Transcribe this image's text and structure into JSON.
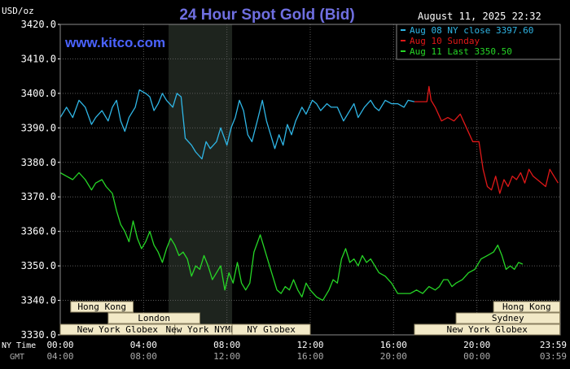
{
  "header": {
    "title": "24 Hour Spot Gold (Bid)",
    "units": "USD/oz",
    "timestamp": "August 11, 2025 22:32",
    "watermark": "www.kitco.com"
  },
  "colors": {
    "background": "#000000",
    "plot_bg": "#000000",
    "grid": "#5a5a5a",
    "title": "#6f6fe0",
    "watermark": "#4b63ff",
    "series_close": "#2fb6e6",
    "series_sunday": "#e01818",
    "series_last": "#26d626",
    "session_fill": "#f2e9c7",
    "session_text": "#000000",
    "session_border": "#8a8060",
    "highlight_band": "#1e241e"
  },
  "legend": [
    {
      "label": "Aug 08 NY close 3397.60",
      "color": "#2fb6e6"
    },
    {
      "label": "Aug 10 Sunday",
      "color": "#e01818"
    },
    {
      "label": "Aug 11 Last 3350.50",
      "color": "#26d626"
    }
  ],
  "axis": {
    "x_row1_label": "NY Time",
    "x_row2_label": "GMT",
    "x_ticks_ny": [
      "00:00",
      "04:00",
      "08:00",
      "12:00",
      "16:00",
      "20:00",
      "23:59"
    ],
    "x_ticks_gmt": [
      "04:00",
      "08:00",
      "12:00",
      "16:00",
      "20:00",
      "00:00",
      "03:59"
    ]
  },
  "sessions": [
    {
      "name": "Hong Kong",
      "row": 0,
      "start": 0.5,
      "end": 3.5
    },
    {
      "name": "Hong Kong",
      "row": 0,
      "start": 20.8,
      "end": 23.98
    },
    {
      "name": "London",
      "row": 1,
      "start": 2.3,
      "end": 6.7
    },
    {
      "name": "Sydney",
      "row": 1,
      "start": 19.0,
      "end": 23.98
    },
    {
      "name": "New York Globex",
      "row": 2,
      "start": 0,
      "end": 5.5
    },
    {
      "name": "New York NYMEX",
      "row": 2,
      "start": 5.5,
      "end": 8.25
    },
    {
      "name": "NY Globex",
      "row": 2,
      "start": 8.25,
      "end": 12.0
    },
    {
      "name": "New York Globex",
      "row": 2,
      "start": 17.0,
      "end": 23.98
    }
  ],
  "chart_data": {
    "type": "line",
    "title": "24 Hour Spot Gold (Bid)",
    "ylabel": "USD/oz",
    "xlabel": "NY Time",
    "xlim": [
      0,
      24
    ],
    "ylim": [
      3330,
      3420
    ],
    "yticks": [
      "3330.0",
      "3340.0",
      "3350.0",
      "3360.0",
      "3370.0",
      "3380.0",
      "3390.0",
      "3400.0",
      "3410.0",
      "3420.0"
    ],
    "grid": true,
    "legend_position": "top-right",
    "highlight_band_hours": [
      5.2,
      8.25
    ],
    "series": [
      {
        "name": "Aug 08 NY close 3397.60",
        "color": "#2fb6e6",
        "points": [
          [
            0.0,
            3393
          ],
          [
            0.3,
            3396
          ],
          [
            0.6,
            3393
          ],
          [
            0.9,
            3398
          ],
          [
            1.2,
            3396
          ],
          [
            1.5,
            3391
          ],
          [
            1.7,
            3393
          ],
          [
            2.0,
            3395
          ],
          [
            2.3,
            3392
          ],
          [
            2.5,
            3396
          ],
          [
            2.7,
            3398
          ],
          [
            2.9,
            3392
          ],
          [
            3.1,
            3389
          ],
          [
            3.3,
            3393
          ],
          [
            3.6,
            3396
          ],
          [
            3.8,
            3401
          ],
          [
            4.1,
            3400
          ],
          [
            4.3,
            3399
          ],
          [
            4.5,
            3395
          ],
          [
            4.7,
            3397
          ],
          [
            4.9,
            3400
          ],
          [
            5.1,
            3398
          ],
          [
            5.4,
            3396
          ],
          [
            5.6,
            3400
          ],
          [
            5.8,
            3399
          ],
          [
            6.0,
            3387
          ],
          [
            6.3,
            3385
          ],
          [
            6.5,
            3383
          ],
          [
            6.8,
            3381
          ],
          [
            7.0,
            3386
          ],
          [
            7.2,
            3384
          ],
          [
            7.5,
            3386
          ],
          [
            7.7,
            3390
          ],
          [
            8.0,
            3385
          ],
          [
            8.2,
            3390
          ],
          [
            8.4,
            3393
          ],
          [
            8.6,
            3398
          ],
          [
            8.8,
            3395
          ],
          [
            9.0,
            3388
          ],
          [
            9.2,
            3386
          ],
          [
            9.5,
            3393
          ],
          [
            9.7,
            3398
          ],
          [
            9.9,
            3392
          ],
          [
            10.1,
            3388
          ],
          [
            10.3,
            3384
          ],
          [
            10.5,
            3388
          ],
          [
            10.7,
            3385
          ],
          [
            10.9,
            3391
          ],
          [
            11.1,
            3388
          ],
          [
            11.3,
            3392
          ],
          [
            11.6,
            3396
          ],
          [
            11.8,
            3394
          ],
          [
            12.1,
            3398
          ],
          [
            12.3,
            3397
          ],
          [
            12.5,
            3395
          ],
          [
            12.8,
            3397
          ],
          [
            13.0,
            3396
          ],
          [
            13.3,
            3396
          ],
          [
            13.6,
            3392
          ],
          [
            13.9,
            3395
          ],
          [
            14.1,
            3397
          ],
          [
            14.3,
            3393
          ],
          [
            14.6,
            3396
          ],
          [
            14.9,
            3398
          ],
          [
            15.1,
            3396
          ],
          [
            15.3,
            3395
          ],
          [
            15.6,
            3398
          ],
          [
            15.9,
            3397
          ],
          [
            16.2,
            3397
          ],
          [
            16.5,
            3396
          ],
          [
            16.7,
            3398
          ],
          [
            17.0,
            3397.6
          ]
        ]
      },
      {
        "name": "Aug 10 Sunday",
        "color": "#e01818",
        "points": [
          [
            17.0,
            3397.6
          ],
          [
            17.6,
            3397.6
          ],
          [
            17.7,
            3402
          ],
          [
            17.8,
            3398
          ],
          [
            18.0,
            3396
          ],
          [
            18.3,
            3392
          ],
          [
            18.6,
            3393
          ],
          [
            18.9,
            3392
          ],
          [
            19.2,
            3394
          ],
          [
            19.5,
            3390
          ],
          [
            19.8,
            3386
          ],
          [
            20.1,
            3386
          ],
          [
            20.3,
            3378
          ],
          [
            20.5,
            3373
          ],
          [
            20.7,
            3372
          ],
          [
            20.9,
            3376
          ],
          [
            21.1,
            3371
          ],
          [
            21.3,
            3375
          ],
          [
            21.5,
            3373
          ],
          [
            21.7,
            3376
          ],
          [
            21.9,
            3375
          ],
          [
            22.1,
            3377
          ],
          [
            22.3,
            3374
          ],
          [
            22.5,
            3378
          ],
          [
            22.7,
            3376
          ],
          [
            22.9,
            3375
          ],
          [
            23.1,
            3374
          ],
          [
            23.3,
            3373
          ],
          [
            23.5,
            3378
          ],
          [
            23.7,
            3376
          ],
          [
            23.9,
            3374
          ]
        ]
      },
      {
        "name": "Aug 11 Last 3350.50",
        "color": "#26d626",
        "points": [
          [
            0.0,
            3377
          ],
          [
            0.3,
            3376
          ],
          [
            0.6,
            3375
          ],
          [
            0.9,
            3377
          ],
          [
            1.2,
            3375
          ],
          [
            1.5,
            3372
          ],
          [
            1.7,
            3374
          ],
          [
            2.0,
            3375
          ],
          [
            2.2,
            3373
          ],
          [
            2.5,
            3371
          ],
          [
            2.7,
            3366
          ],
          [
            2.9,
            3362
          ],
          [
            3.1,
            3360
          ],
          [
            3.3,
            3357
          ],
          [
            3.5,
            3363
          ],
          [
            3.7,
            3358
          ],
          [
            3.9,
            3355
          ],
          [
            4.1,
            3357
          ],
          [
            4.3,
            3360
          ],
          [
            4.5,
            3356
          ],
          [
            4.7,
            3354
          ],
          [
            4.9,
            3351
          ],
          [
            5.1,
            3355
          ],
          [
            5.3,
            3358
          ],
          [
            5.5,
            3356
          ],
          [
            5.7,
            3353
          ],
          [
            5.9,
            3354
          ],
          [
            6.1,
            3352
          ],
          [
            6.3,
            3347
          ],
          [
            6.5,
            3350
          ],
          [
            6.7,
            3349
          ],
          [
            6.9,
            3353
          ],
          [
            7.1,
            3350
          ],
          [
            7.3,
            3346
          ],
          [
            7.5,
            3348
          ],
          [
            7.7,
            3350
          ],
          [
            7.9,
            3343
          ],
          [
            8.1,
            3348
          ],
          [
            8.3,
            3345
          ],
          [
            8.5,
            3351
          ],
          [
            8.7,
            3345
          ],
          [
            8.9,
            3343
          ],
          [
            9.1,
            3345
          ],
          [
            9.3,
            3354
          ],
          [
            9.6,
            3359
          ],
          [
            9.8,
            3355
          ],
          [
            10.0,
            3351
          ],
          [
            10.2,
            3347
          ],
          [
            10.4,
            3343
          ],
          [
            10.6,
            3342
          ],
          [
            10.8,
            3344
          ],
          [
            11.0,
            3343
          ],
          [
            11.2,
            3346
          ],
          [
            11.4,
            3343
          ],
          [
            11.6,
            3341
          ],
          [
            11.8,
            3345
          ],
          [
            12.0,
            3343
          ],
          [
            12.3,
            3341
          ],
          [
            12.6,
            3340
          ],
          [
            12.9,
            3343
          ],
          [
            13.1,
            3346
          ],
          [
            13.3,
            3345
          ],
          [
            13.5,
            3352
          ],
          [
            13.7,
            3355
          ],
          [
            13.9,
            3351
          ],
          [
            14.1,
            3352
          ],
          [
            14.3,
            3350
          ],
          [
            14.5,
            3353
          ],
          [
            14.7,
            3351
          ],
          [
            14.9,
            3352
          ],
          [
            15.1,
            3350
          ],
          [
            15.3,
            3348
          ],
          [
            15.6,
            3347
          ],
          [
            15.9,
            3345
          ],
          [
            16.2,
            3342
          ],
          [
            16.5,
            3342
          ],
          [
            16.8,
            3342
          ],
          [
            17.1,
            3343
          ],
          [
            17.4,
            3342
          ],
          [
            17.7,
            3344
          ],
          [
            18.0,
            3343
          ],
          [
            18.2,
            3344
          ],
          [
            18.4,
            3346
          ],
          [
            18.6,
            3346
          ],
          [
            18.8,
            3344
          ],
          [
            19.0,
            3345
          ],
          [
            19.3,
            3346
          ],
          [
            19.6,
            3348
          ],
          [
            19.9,
            3349
          ],
          [
            20.2,
            3352
          ],
          [
            20.5,
            3353
          ],
          [
            20.8,
            3354
          ],
          [
            21.0,
            3356
          ],
          [
            21.2,
            3353
          ],
          [
            21.4,
            3349
          ],
          [
            21.6,
            3350
          ],
          [
            21.8,
            3349
          ],
          [
            22.0,
            3351
          ],
          [
            22.2,
            3350.5
          ]
        ]
      }
    ]
  }
}
